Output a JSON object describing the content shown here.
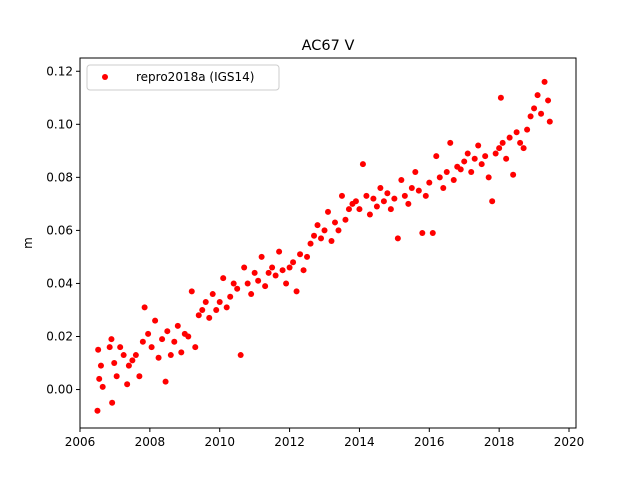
{
  "chart_data": {
    "type": "scatter",
    "title": "AC67 V",
    "xlabel": "",
    "ylabel": "m",
    "xlim": [
      2006.0,
      2020.2
    ],
    "ylim": [
      -0.0145,
      0.125
    ],
    "x_ticks": [
      "2006",
      "2008",
      "2010",
      "2012",
      "2014",
      "2016",
      "2018",
      "2020"
    ],
    "y_ticks": [
      "0.00",
      "0.02",
      "0.04",
      "0.06",
      "0.08",
      "0.10",
      "0.12"
    ],
    "grid": false,
    "legend": {
      "placement": "top-left",
      "entries": [
        "repro2018a (IGS14)"
      ]
    },
    "series": [
      {
        "name": "repro2018a (IGS14)",
        "color": "#ff0000",
        "marker": "circle",
        "points": [
          [
            2006.5,
            -0.008
          ],
          [
            2006.52,
            0.015
          ],
          [
            2006.55,
            0.004
          ],
          [
            2006.6,
            0.009
          ],
          [
            2006.65,
            0.001
          ],
          [
            2006.85,
            0.016
          ],
          [
            2006.9,
            0.019
          ],
          [
            2006.92,
            -0.005
          ],
          [
            2006.98,
            0.01
          ],
          [
            2007.05,
            0.005
          ],
          [
            2007.15,
            0.016
          ],
          [
            2007.25,
            0.013
          ],
          [
            2007.35,
            0.002
          ],
          [
            2007.4,
            0.009
          ],
          [
            2007.5,
            0.011
          ],
          [
            2007.6,
            0.013
          ],
          [
            2007.7,
            0.005
          ],
          [
            2007.8,
            0.018
          ],
          [
            2007.85,
            0.031
          ],
          [
            2007.95,
            0.021
          ],
          [
            2008.05,
            0.016
          ],
          [
            2008.15,
            0.026
          ],
          [
            2008.25,
            0.012
          ],
          [
            2008.35,
            0.019
          ],
          [
            2008.45,
            0.003
          ],
          [
            2008.5,
            0.022
          ],
          [
            2008.6,
            0.013
          ],
          [
            2008.7,
            0.018
          ],
          [
            2008.8,
            0.024
          ],
          [
            2008.9,
            0.014
          ],
          [
            2009.0,
            0.021
          ],
          [
            2009.1,
            0.02
          ],
          [
            2009.2,
            0.037
          ],
          [
            2009.3,
            0.016
          ],
          [
            2009.4,
            0.028
          ],
          [
            2009.5,
            0.03
          ],
          [
            2009.6,
            0.033
          ],
          [
            2009.7,
            0.027
          ],
          [
            2009.8,
            0.036
          ],
          [
            2009.9,
            0.03
          ],
          [
            2010.0,
            0.033
          ],
          [
            2010.1,
            0.042
          ],
          [
            2010.2,
            0.031
          ],
          [
            2010.3,
            0.035
          ],
          [
            2010.4,
            0.04
          ],
          [
            2010.5,
            0.038
          ],
          [
            2010.6,
            0.013
          ],
          [
            2010.7,
            0.046
          ],
          [
            2010.8,
            0.04
          ],
          [
            2010.9,
            0.036
          ],
          [
            2011.0,
            0.044
          ],
          [
            2011.1,
            0.041
          ],
          [
            2011.2,
            0.05
          ],
          [
            2011.3,
            0.039
          ],
          [
            2011.4,
            0.044
          ],
          [
            2011.5,
            0.046
          ],
          [
            2011.6,
            0.043
          ],
          [
            2011.7,
            0.052
          ],
          [
            2011.8,
            0.045
          ],
          [
            2011.9,
            0.04
          ],
          [
            2012.0,
            0.046
          ],
          [
            2012.1,
            0.048
          ],
          [
            2012.2,
            0.037
          ],
          [
            2012.3,
            0.051
          ],
          [
            2012.4,
            0.045
          ],
          [
            2012.5,
            0.05
          ],
          [
            2012.6,
            0.055
          ],
          [
            2012.7,
            0.058
          ],
          [
            2012.8,
            0.062
          ],
          [
            2012.9,
            0.057
          ],
          [
            2013.0,
            0.06
          ],
          [
            2013.1,
            0.067
          ],
          [
            2013.2,
            0.056
          ],
          [
            2013.3,
            0.063
          ],
          [
            2013.4,
            0.06
          ],
          [
            2013.5,
            0.073
          ],
          [
            2013.6,
            0.064
          ],
          [
            2013.7,
            0.068
          ],
          [
            2013.8,
            0.07
          ],
          [
            2013.9,
            0.071
          ],
          [
            2014.0,
            0.068
          ],
          [
            2014.1,
            0.085
          ],
          [
            2014.2,
            0.073
          ],
          [
            2014.3,
            0.066
          ],
          [
            2014.4,
            0.072
          ],
          [
            2014.5,
            0.069
          ],
          [
            2014.6,
            0.076
          ],
          [
            2014.7,
            0.071
          ],
          [
            2014.8,
            0.074
          ],
          [
            2014.9,
            0.068
          ],
          [
            2015.0,
            0.072
          ],
          [
            2015.1,
            0.057
          ],
          [
            2015.2,
            0.079
          ],
          [
            2015.3,
            0.073
          ],
          [
            2015.4,
            0.07
          ],
          [
            2015.5,
            0.076
          ],
          [
            2015.6,
            0.082
          ],
          [
            2015.7,
            0.075
          ],
          [
            2015.8,
            0.059
          ],
          [
            2015.9,
            0.073
          ],
          [
            2016.0,
            0.078
          ],
          [
            2016.1,
            0.059
          ],
          [
            2016.2,
            0.088
          ],
          [
            2016.3,
            0.08
          ],
          [
            2016.4,
            0.076
          ],
          [
            2016.5,
            0.082
          ],
          [
            2016.6,
            0.093
          ],
          [
            2016.7,
            0.079
          ],
          [
            2016.8,
            0.084
          ],
          [
            2016.9,
            0.083
          ],
          [
            2017.0,
            0.086
          ],
          [
            2017.1,
            0.089
          ],
          [
            2017.2,
            0.082
          ],
          [
            2017.3,
            0.087
          ],
          [
            2017.4,
            0.092
          ],
          [
            2017.5,
            0.085
          ],
          [
            2017.6,
            0.088
          ],
          [
            2017.7,
            0.08
          ],
          [
            2017.8,
            0.071
          ],
          [
            2017.9,
            0.089
          ],
          [
            2018.0,
            0.091
          ],
          [
            2018.05,
            0.11
          ],
          [
            2018.1,
            0.093
          ],
          [
            2018.2,
            0.087
          ],
          [
            2018.3,
            0.095
          ],
          [
            2018.4,
            0.081
          ],
          [
            2018.5,
            0.097
          ],
          [
            2018.6,
            0.093
          ],
          [
            2018.7,
            0.091
          ],
          [
            2018.8,
            0.098
          ],
          [
            2018.9,
            0.103
          ],
          [
            2019.0,
            0.106
          ],
          [
            2019.1,
            0.111
          ],
          [
            2019.2,
            0.104
          ],
          [
            2019.3,
            0.116
          ],
          [
            2019.4,
            0.109
          ],
          [
            2019.45,
            0.101
          ]
        ]
      }
    ]
  }
}
